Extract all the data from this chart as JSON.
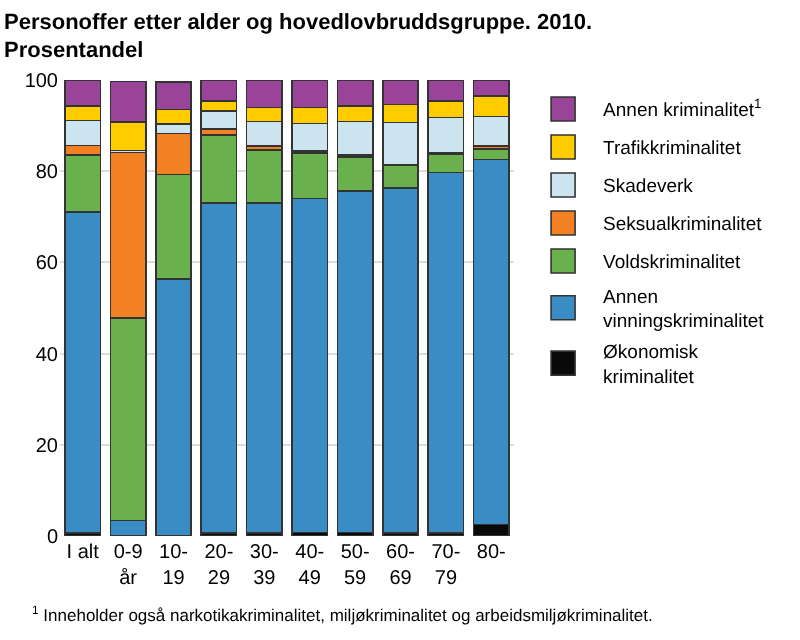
{
  "chart_data": {
    "type": "bar",
    "stacked": true,
    "title": "Personoffer etter alder og hovedlovbruddsgruppe. 2010.\nProsentandel",
    "categories": [
      "I alt",
      "0-9\når",
      "10-\n19",
      "20-\n29",
      "30-\n39",
      "40-\n49",
      "50-\n59",
      "60-\n69",
      "70-\n79",
      "80-"
    ],
    "series": [
      {
        "name": "Økonomisk\nkriminalitet",
        "color": "#0a0a0a",
        "values": [
          0.6,
          null,
          null,
          0.6,
          0.6,
          0.8,
          0.8,
          0.6,
          0.7,
          2.5
        ]
      },
      {
        "name": "Annen\nvinningskriminalitet",
        "color": "#3a8dc4",
        "values": [
          70.5,
          3.4,
          56.3,
          72.4,
          72.4,
          73.2,
          74.9,
          75.7,
          79,
          80.1
        ]
      },
      {
        "name": "Voldskriminalitet",
        "color": "#6ab04c",
        "values": [
          12.5,
          44.4,
          23,
          15,
          11.6,
          10,
          7.4,
          5,
          4.1,
          2.3
        ]
      },
      {
        "name": "Seksualkriminalitet",
        "color": "#f28124",
        "values": [
          2,
          36.3,
          9,
          1.2,
          0.9,
          0.4,
          0.4,
          0.2,
          0.2,
          0.6
        ]
      },
      {
        "name": "Skadeverk",
        "color": "#cce3f0",
        "values": [
          5.5,
          0.4,
          2.1,
          4,
          5.4,
          6.1,
          7.4,
          9.2,
          7.8,
          6.5
        ]
      },
      {
        "name": "Trafikkriminalitet",
        "color": "#ffcc00",
        "values": [
          3.2,
          6.3,
          3.1,
          2.2,
          3.1,
          3.5,
          3.4,
          3.9,
          3.6,
          4.5
        ]
      },
      {
        "name": "Annen kriminalitet$^{1}$",
        "color": "#994499",
        "values": [
          5.7,
          8.9,
          6,
          4.6,
          6,
          6,
          5.7,
          5.4,
          4.6,
          3.5
        ]
      }
    ],
    "ylim": [
      0,
      100
    ],
    "yticks": [
      0,
      20,
      40,
      60,
      80,
      100
    ],
    "grid": "y",
    "legend": "right",
    "annotations": [
      "$^{1}$ Inneholder også narkotikakriminalitet, miljøkriminalitet og arbeidsmiljøkriminalitet."
    ]
  }
}
